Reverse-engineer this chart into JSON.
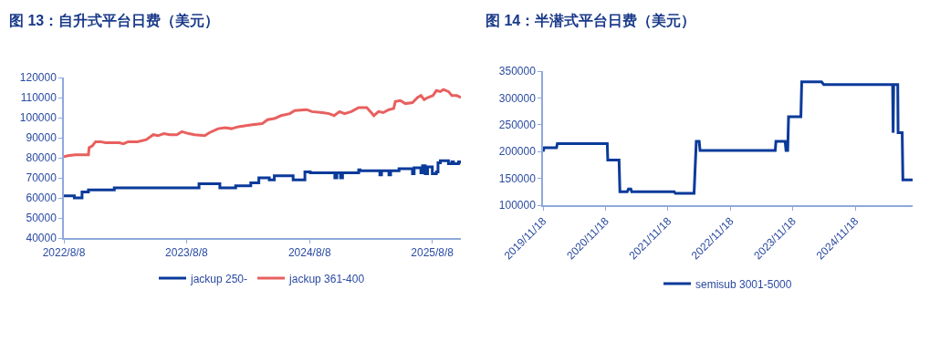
{
  "chart_data": [
    {
      "type": "line",
      "title": "图 13：自升式平台日费（美元）",
      "xlim": [
        "2022-08-08",
        "2025-11-01"
      ],
      "xticks": [
        {
          "value": "2022-08-08",
          "label": "2022/8/8"
        },
        {
          "value": "2023-08-08",
          "label": "2023/8/8"
        },
        {
          "value": "2024-08-08",
          "label": "2024/8/8"
        },
        {
          "value": "2025-08-08",
          "label": "2025/8/8"
        }
      ],
      "ylim": [
        40000,
        120000
      ],
      "yticks": [
        40000,
        50000,
        60000,
        70000,
        80000,
        90000,
        100000,
        110000,
        120000
      ],
      "legend": "bottom",
      "marker": "none",
      "line_style": "solid",
      "series": [
        {
          "name": "jackup 250-",
          "type": "step",
          "color": "#0a3a9a",
          "x": [
            "2022-08-08",
            "2022-09-08",
            "2022-10-01",
            "2022-10-20",
            "2023-01-05",
            "2023-09-14",
            "2023-11-15",
            "2024-01-01",
            "2024-02-15",
            "2024-03-10",
            "2024-04-10",
            "2024-04-25",
            "2024-06-20",
            "2024-07-25",
            "2024-08-10",
            "2024-10-22",
            "2024-10-28",
            "2024-11-08",
            "2024-11-14",
            "2025-01-01",
            "2025-01-05",
            "2025-03-05",
            "2025-03-10",
            "2025-04-01",
            "2025-04-06",
            "2025-05-01",
            "2025-06-10",
            "2025-06-15",
            "2025-07-05",
            "2025-07-10",
            "2025-07-18",
            "2025-07-25",
            "2025-08-08",
            "2025-08-20",
            "2025-08-25",
            "2025-09-01",
            "2025-09-25",
            "2025-10-05",
            "2025-10-10",
            "2025-10-25",
            "2025-11-01"
          ],
          "values": [
            61000,
            60000,
            63000,
            64000,
            65000,
            67000,
            65000,
            66000,
            67500,
            70000,
            69000,
            71000,
            69000,
            73000,
            72500,
            70000,
            72500,
            70000,
            72500,
            74000,
            73500,
            71500,
            73500,
            71500,
            73500,
            74500,
            72000,
            75000,
            72500,
            76000,
            72000,
            75500,
            72000,
            73000,
            77500,
            78500,
            77000,
            78000,
            77000,
            78000,
            77000
          ]
        },
        {
          "name": "jackup 361-400",
          "type": "line",
          "color": "#e8605e",
          "x": [
            "2022-08-08",
            "2022-08-20",
            "2022-09-10",
            "2022-10-20",
            "2022-10-22",
            "2022-11-01",
            "2022-11-10",
            "2022-11-25",
            "2022-12-10",
            "2023-01-20",
            "2023-02-01",
            "2023-02-15",
            "2023-03-15",
            "2023-04-10",
            "2023-05-01",
            "2023-05-15",
            "2023-06-01",
            "2023-06-20",
            "2023-07-10",
            "2023-07-25",
            "2023-08-15",
            "2023-09-01",
            "2023-10-01",
            "2023-10-15",
            "2023-11-10",
            "2023-12-01",
            "2023-12-20",
            "2024-01-10",
            "2024-02-01",
            "2024-02-20",
            "2024-03-20",
            "2024-04-05",
            "2024-04-25",
            "2024-05-15",
            "2024-06-10",
            "2024-06-25",
            "2024-07-30",
            "2024-08-15",
            "2024-09-15",
            "2024-10-05",
            "2024-10-20",
            "2024-11-05",
            "2024-11-20",
            "2024-12-10",
            "2025-01-01",
            "2025-01-25",
            "2025-02-05",
            "2025-02-15",
            "2025-03-01",
            "2025-03-15",
            "2025-04-01",
            "2025-04-15",
            "2025-04-20",
            "2025-05-05",
            "2025-05-20",
            "2025-06-10",
            "2025-06-25",
            "2025-07-05",
            "2025-07-15",
            "2025-07-25",
            "2025-08-10",
            "2025-08-20",
            "2025-09-01",
            "2025-09-10",
            "2025-09-25",
            "2025-10-05",
            "2025-10-20",
            "2025-11-01"
          ],
          "values": [
            80500,
            81000,
            81500,
            81500,
            85000,
            86000,
            88000,
            88000,
            87500,
            87500,
            87000,
            88000,
            88000,
            89000,
            91500,
            91000,
            92000,
            91500,
            91500,
            93000,
            92000,
            91500,
            91000,
            92500,
            94500,
            95000,
            94500,
            95500,
            96000,
            96500,
            97000,
            99000,
            99500,
            101000,
            102000,
            103500,
            104000,
            103000,
            102500,
            102000,
            101000,
            103000,
            102000,
            103000,
            105000,
            105000,
            103000,
            101000,
            103000,
            102500,
            104000,
            104500,
            108000,
            108500,
            107000,
            107500,
            110000,
            111000,
            109000,
            110000,
            111000,
            113500,
            113000,
            114000,
            113000,
            111000,
            111000,
            110000
          ]
        }
      ]
    },
    {
      "type": "line",
      "title": "图 14：半潜式平台日费（美元）",
      "xlim": [
        "2019-11-18",
        "2025-10-20"
      ],
      "xticks": [
        {
          "value": "2019-11-18",
          "label": "2019/11/18"
        },
        {
          "value": "2020-11-18",
          "label": "2020/11/18"
        },
        {
          "value": "2021-11-18",
          "label": "2021/11/18"
        },
        {
          "value": "2022-11-18",
          "label": "2022/11/18"
        },
        {
          "value": "2023-11-18",
          "label": "2023/11/18"
        },
        {
          "value": "2024-11-18",
          "label": "2024/11/18"
        }
      ],
      "ylim": [
        100000,
        350000
      ],
      "yticks": [
        100000,
        150000,
        200000,
        250000,
        300000,
        350000
      ],
      "legend": "bottom",
      "marker": "none",
      "line_style": "solid",
      "series": [
        {
          "name": "semisub 3001-5000",
          "color": "#0a3a9a",
          "x": [
            "2019-11-18",
            "2019-11-25",
            "2020-02-05",
            "2020-02-10",
            "2020-11-28",
            "2020-12-01",
            "2021-02-05",
            "2021-02-10",
            "2021-03-25",
            "2021-04-01",
            "2021-04-15",
            "2021-04-20",
            "2021-12-25",
            "2022-01-01",
            "2022-04-20",
            "2022-05-03",
            "2022-05-20",
            "2022-05-25",
            "2023-08-08",
            "2023-08-12",
            "2023-10-05",
            "2023-10-10",
            "2023-10-20",
            "2023-10-25",
            "2024-01-05",
            "2024-01-10",
            "2024-05-05",
            "2024-05-18",
            "2025-06-25",
            "2025-06-28",
            "2025-07-01",
            "2025-07-25",
            "2025-07-27",
            "2025-08-20",
            "2025-08-24",
            "2025-10-20"
          ],
          "values": [
            200000,
            207000,
            207000,
            215000,
            215000,
            184000,
            184000,
            125000,
            125000,
            130000,
            130000,
            125000,
            125000,
            122000,
            122000,
            219000,
            219000,
            202000,
            202000,
            219000,
            219000,
            202000,
            202000,
            265000,
            265000,
            330000,
            330000,
            325000,
            325000,
            235000,
            325000,
            325000,
            235000,
            235000,
            147000,
            147000
          ]
        }
      ]
    }
  ]
}
